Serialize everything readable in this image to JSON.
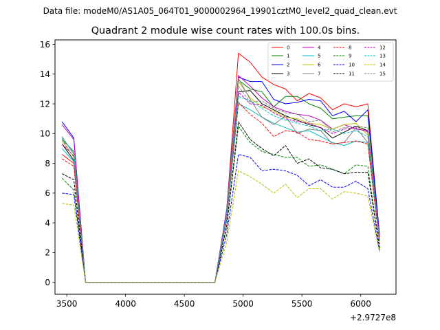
{
  "suptitle": "Data file: modeM0/AS1A05_064T01_9000002964_19901cztM0_level2_quad_clean.evt",
  "title": "Quadrant 2 module wise count rates with 100.0s bins.",
  "offset_label": "+2.9727e8",
  "chart_data": {
    "type": "line",
    "title": "Quadrant 2 module wise count rates with 100.0s bins.",
    "xlabel": "",
    "ylabel": "",
    "x_offset": 297270000,
    "xlim": [
      3400,
      6300
    ],
    "ylim": [
      -0.8,
      16.3
    ],
    "xticks": [
      3500,
      4000,
      4500,
      5000,
      5500,
      6000
    ],
    "yticks": [
      0,
      2,
      4,
      6,
      8,
      10,
      12,
      14,
      16
    ],
    "legend_position": "top-right",
    "x": [
      3460,
      3560,
      3660,
      3760,
      3860,
      3960,
      4060,
      4160,
      4260,
      4360,
      4460,
      4560,
      4660,
      4760,
      4860,
      4960,
      5060,
      5160,
      5260,
      5360,
      5460,
      5560,
      5660,
      5760,
      5860,
      5960,
      6060,
      6160
    ],
    "series": [
      {
        "name": "0",
        "color": "#ff0000",
        "dash": "solid",
        "values": [
          8.6,
          8.0,
          0,
          0,
          0,
          0,
          0,
          0,
          0,
          0,
          0,
          0,
          0,
          0,
          4.8,
          15.4,
          14.8,
          13.8,
          13.3,
          13.0,
          12.2,
          12.7,
          12.4,
          11.6,
          12.0,
          11.8,
          12.0,
          3.1
        ]
      },
      {
        "name": "1",
        "color": "#008000",
        "dash": "solid",
        "values": [
          9.6,
          8.8,
          0,
          0,
          0,
          0,
          0,
          0,
          0,
          0,
          0,
          0,
          0,
          0,
          4.6,
          13.6,
          13.0,
          12.8,
          11.8,
          12.5,
          12.5,
          12.0,
          11.7,
          11.0,
          11.1,
          11.2,
          11.2,
          3.0
        ]
      },
      {
        "name": "2",
        "color": "#0000ff",
        "dash": "solid",
        "values": [
          10.8,
          9.7,
          0,
          0,
          0,
          0,
          0,
          0,
          0,
          0,
          0,
          0,
          0,
          0,
          4.9,
          13.8,
          13.5,
          13.5,
          12.3,
          12.0,
          12.1,
          12.3,
          12.2,
          11.2,
          11.5,
          10.8,
          11.6,
          3.2
        ]
      },
      {
        "name": "3",
        "color": "#000000",
        "dash": "solid",
        "values": [
          9.3,
          8.2,
          0,
          0,
          0,
          0,
          0,
          0,
          0,
          0,
          0,
          0,
          0,
          0,
          4.5,
          12.8,
          12.9,
          12.0,
          11.6,
          11.2,
          10.9,
          10.6,
          10.4,
          9.7,
          10.1,
          10.5,
          10.2,
          2.8
        ]
      },
      {
        "name": "4",
        "color": "#bf00bf",
        "dash": "solid",
        "values": [
          10.6,
          9.6,
          0,
          0,
          0,
          0,
          0,
          0,
          0,
          0,
          0,
          0,
          0,
          0,
          4.8,
          13.9,
          13.2,
          12.4,
          11.8,
          11.5,
          11.3,
          11.2,
          10.9,
          10.3,
          10.6,
          10.3,
          10.2,
          3.0
        ]
      },
      {
        "name": "5",
        "color": "#00bfbf",
        "dash": "solid",
        "values": [
          9.0,
          8.1,
          0,
          0,
          0,
          0,
          0,
          0,
          0,
          0,
          0,
          0,
          0,
          0,
          4.3,
          12.0,
          11.6,
          11.1,
          10.7,
          10.4,
          10.1,
          10.2,
          9.8,
          9.4,
          9.2,
          9.5,
          9.4,
          2.8
        ]
      },
      {
        "name": "6",
        "color": "#bfbf00",
        "dash": "solid",
        "values": [
          9.5,
          8.4,
          0,
          0,
          0,
          0,
          0,
          0,
          0,
          0,
          0,
          0,
          0,
          0,
          4.6,
          13.5,
          12.4,
          11.8,
          11.5,
          11.1,
          11.0,
          10.7,
          10.6,
          10.3,
          10.6,
          10.7,
          9.9,
          2.9
        ]
      },
      {
        "name": "7",
        "color": "#808080",
        "dash": "solid",
        "values": [
          9.8,
          8.6,
          0,
          0,
          0,
          0,
          0,
          0,
          0,
          0,
          0,
          0,
          0,
          0,
          4.7,
          13.7,
          12.3,
          11.1,
          10.6,
          11.2,
          10.0,
          10.3,
          10.2,
          9.3,
          9.4,
          10.4,
          9.4,
          2.8
        ]
      },
      {
        "name": "8",
        "color": "#ff0000",
        "dash": "dashed",
        "values": [
          8.3,
          7.8,
          0,
          0,
          0,
          0,
          0,
          0,
          0,
          0,
          0,
          0,
          0,
          0,
          4.2,
          12.1,
          11.3,
          10.7,
          9.8,
          10.2,
          10.1,
          9.6,
          9.5,
          9.3,
          9.4,
          9.5,
          9.3,
          2.6
        ]
      },
      {
        "name": "9",
        "color": "#008000",
        "dash": "dashed",
        "values": [
          7.0,
          6.2,
          0,
          0,
          0,
          0,
          0,
          0,
          0,
          0,
          0,
          0,
          0,
          0,
          3.7,
          10.5,
          9.4,
          8.8,
          8.6,
          8.4,
          8.4,
          7.8,
          7.9,
          7.6,
          7.3,
          7.9,
          7.8,
          2.3
        ]
      },
      {
        "name": "10",
        "color": "#0000ff",
        "dash": "dashed",
        "values": [
          6.0,
          5.9,
          0,
          0,
          0,
          0,
          0,
          0,
          0,
          0,
          0,
          0,
          0,
          0,
          3.2,
          8.6,
          8.4,
          7.5,
          7.6,
          7.5,
          7.2,
          6.5,
          6.9,
          6.4,
          6.4,
          6.8,
          6.3,
          2.1
        ]
      },
      {
        "name": "11",
        "color": "#000000",
        "dash": "dashed",
        "values": [
          7.3,
          6.9,
          0,
          0,
          0,
          0,
          0,
          0,
          0,
          0,
          0,
          0,
          0,
          0,
          3.8,
          10.8,
          9.6,
          9.0,
          8.5,
          9.2,
          8.0,
          8.3,
          7.7,
          7.6,
          7.3,
          7.4,
          7.4,
          2.3
        ]
      },
      {
        "name": "12",
        "color": "#bf00bf",
        "dash": "dashed",
        "values": [
          9.3,
          8.5,
          0,
          0,
          0,
          0,
          0,
          0,
          0,
          0,
          0,
          0,
          0,
          0,
          4.5,
          12.8,
          12.0,
          11.9,
          11.4,
          11.0,
          10.8,
          10.7,
          10.4,
          10.0,
          10.3,
          10.4,
          10.1,
          2.9
        ]
      },
      {
        "name": "13",
        "color": "#00bfbf",
        "dash": "dashed",
        "values": [
          9.7,
          8.7,
          0,
          0,
          0,
          0,
          0,
          0,
          0,
          0,
          0,
          0,
          0,
          0,
          4.4,
          12.5,
          12.2,
          11.7,
          11.2,
          10.9,
          10.7,
          10.5,
          10.2,
          10.3,
          10.0,
          10.2,
          9.8,
          2.8
        ]
      },
      {
        "name": "14",
        "color": "#bfbf00",
        "dash": "dashed",
        "values": [
          5.3,
          5.2,
          0,
          0,
          0,
          0,
          0,
          0,
          0,
          0,
          0,
          0,
          0,
          0,
          2.7,
          7.5,
          7.1,
          6.6,
          6.0,
          6.6,
          5.7,
          6.3,
          6.3,
          5.6,
          6.1,
          6.0,
          5.8,
          2.0
        ]
      },
      {
        "name": "15",
        "color": "#808080",
        "dash": "dashed",
        "values": [
          9.6,
          8.4,
          0,
          0,
          0,
          0,
          0,
          0,
          0,
          0,
          0,
          0,
          0,
          0,
          4.6,
          13.2,
          12.1,
          12.2,
          11.7,
          11.4,
          11.3,
          10.8,
          10.9,
          10.1,
          10.4,
          10.5,
          10.4,
          2.9
        ]
      }
    ]
  }
}
